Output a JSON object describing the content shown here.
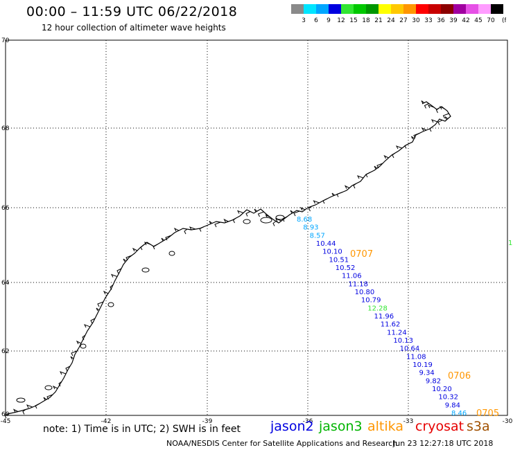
{
  "header": {
    "title": "00:00 – 11:59 UTC 06/22/2018",
    "subtitle": "12 hour collection of altimeter wave heights"
  },
  "colorbar": {
    "unit": "(ft)",
    "entries": [
      {
        "label": "3",
        "color": "#8a8a8a"
      },
      {
        "label": "6",
        "color": "#00e5ff"
      },
      {
        "label": "9",
        "color": "#00a6ff"
      },
      {
        "label": "12",
        "color": "#0000e0"
      },
      {
        "label": "15",
        "color": "#32e632"
      },
      {
        "label": "18",
        "color": "#00c800"
      },
      {
        "label": "21",
        "color": "#009600"
      },
      {
        "label": "24",
        "color": "#ffff00"
      },
      {
        "label": "27",
        "color": "#ffc800"
      },
      {
        "label": "30",
        "color": "#ff9600"
      },
      {
        "label": "33",
        "color": "#ff0000"
      },
      {
        "label": "36",
        "color": "#c80000"
      },
      {
        "label": "39",
        "color": "#8c0000"
      },
      {
        "label": "42",
        "color": "#a000a0"
      },
      {
        "label": "45",
        "color": "#e650e6"
      },
      {
        "label": "70",
        "color": "#ff9cff"
      },
      {
        "label": "",
        "color": "#000000"
      }
    ]
  },
  "map": {
    "lon_ticks": [
      "-45",
      "-42",
      "-39",
      "-36",
      "-33",
      "-30"
    ],
    "lat_ticks": [
      "70",
      "68",
      "66",
      "64",
      "62",
      "60"
    ],
    "lon_range": [
      -45,
      -30
    ],
    "lat_range": [
      60,
      70
    ],
    "track_times": [
      "0707",
      "0706",
      "0705"
    ],
    "partial_label": "1",
    "wave_heights": [
      {
        "v": "8.68",
        "c": "#00a6ff"
      },
      {
        "v": "8.93",
        "c": "#00a6ff"
      },
      {
        "v": "8.57",
        "c": "#00a6ff"
      },
      {
        "v": "10.44",
        "c": "#0000e0"
      },
      {
        "v": "10.10",
        "c": "#0000e0"
      },
      {
        "v": "10.51",
        "c": "#0000e0"
      },
      {
        "v": "10.52",
        "c": "#0000e0"
      },
      {
        "v": "11.06",
        "c": "#0000e0"
      },
      {
        "v": "11.18",
        "c": "#0000e0"
      },
      {
        "v": "10.80",
        "c": "#0000e0"
      },
      {
        "v": "10.79",
        "c": "#0000e0"
      },
      {
        "v": "12.28",
        "c": "#32e632"
      },
      {
        "v": "11.96",
        "c": "#0000e0"
      },
      {
        "v": "11.62",
        "c": "#0000e0"
      },
      {
        "v": "11.24",
        "c": "#0000e0"
      },
      {
        "v": "10.13",
        "c": "#0000e0"
      },
      {
        "v": "10.64",
        "c": "#0000e0"
      },
      {
        "v": "11.08",
        "c": "#0000e0"
      },
      {
        "v": "10.19",
        "c": "#0000e0"
      },
      {
        "v": "9.34",
        "c": "#0000e0"
      },
      {
        "v": "9.82",
        "c": "#0000e0"
      },
      {
        "v": "10.20",
        "c": "#0000e0"
      },
      {
        "v": "10.32",
        "c": "#0000e0"
      },
      {
        "v": "9.84",
        "c": "#0000e0"
      },
      {
        "v": "8.46",
        "c": "#00a6ff"
      }
    ]
  },
  "note": "note: 1) Time is in UTC; 2) SWH is in feet",
  "legend": [
    {
      "label": "jason2",
      "color": "#0000e0"
    },
    {
      "label": "jason3",
      "color": "#00b400"
    },
    {
      "label": "altika",
      "color": "#ff9600"
    },
    {
      "label": "cryosat",
      "color": "#e60000"
    },
    {
      "label": "s3a",
      "color": "#a05000"
    }
  ],
  "footer": {
    "credit": "NOAA/NESDIS Center for Satellite Applications and Research",
    "timestamp": "Jun 23 12:27:18 UTC 2018"
  }
}
